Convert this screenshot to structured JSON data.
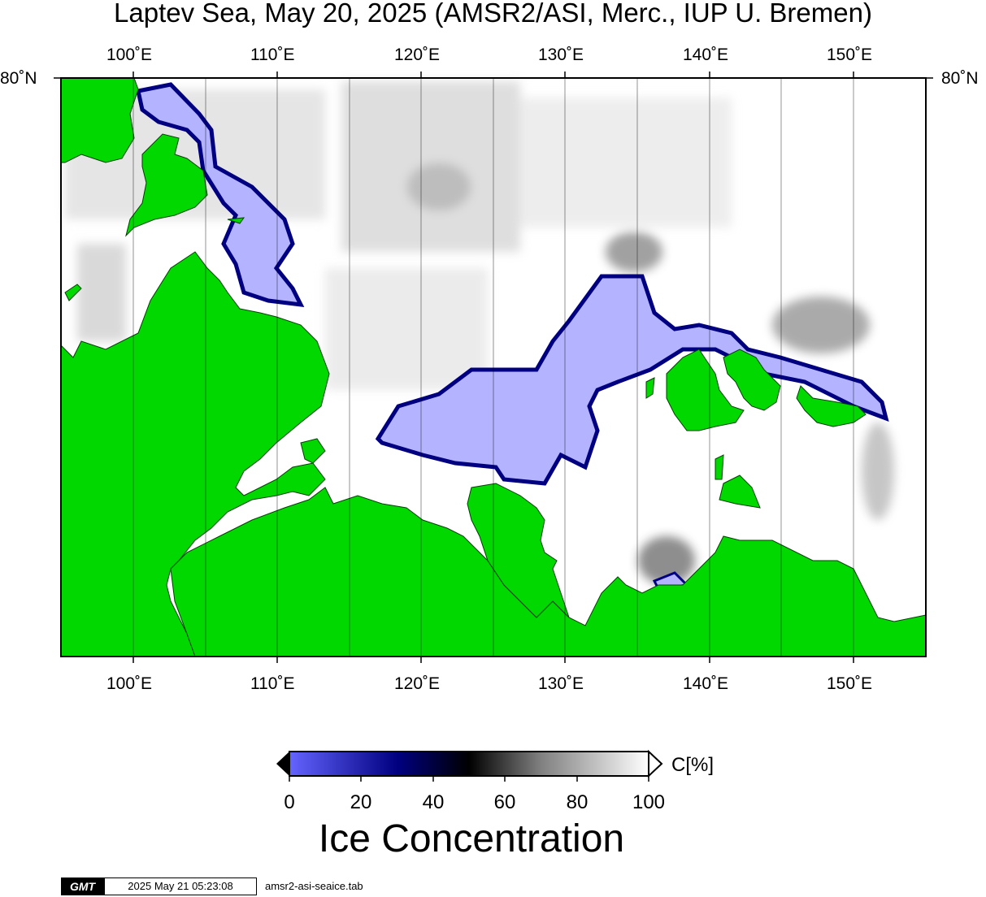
{
  "title": "Laptev Sea, May 20, 2025 (AMSR2/ASI, Merc., IUP U. Bremen)",
  "map": {
    "lon_ticks": [
      "100˚E",
      "110˚E",
      "120˚E",
      "130˚E",
      "140˚E",
      "150˚E"
    ],
    "lat_label": "80˚N",
    "land_color": "#00d800",
    "water_ice_color": "#ffffff",
    "open_water_color": "#b3b3ff"
  },
  "colorbar": {
    "ticks": [
      "0",
      "20",
      "40",
      "60",
      "80",
      "100"
    ],
    "unit": "C[%]",
    "title": "Ice Concentration",
    "colors": [
      "#6464ff",
      "#000080",
      "#000000",
      "#808080",
      "#ffffff"
    ]
  },
  "footer": {
    "logo": "GMT",
    "timestamp": "2025 May 21 05:23:08",
    "file": "amsr2-asi-seaice.tab"
  }
}
